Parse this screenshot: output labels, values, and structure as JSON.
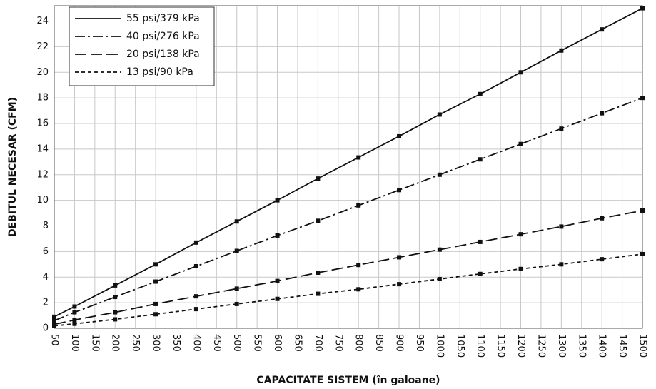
{
  "chart_data": {
    "type": "line",
    "x_label": "CAPACITATE SISTEM (în galoane)",
    "y_label": "DEBITUL NECESAR (CFM)",
    "x": [
      50,
      100,
      200,
      300,
      400,
      500,
      600,
      700,
      800,
      900,
      1000,
      1100,
      1200,
      1300,
      1400,
      1500
    ],
    "series": [
      {
        "name": "55 psi/379 kPa",
        "color": "#111111",
        "dash": "solid",
        "values": [
          0.9,
          1.7,
          3.35,
          5.0,
          6.7,
          8.35,
          10.0,
          11.7,
          13.35,
          15.0,
          16.7,
          18.3,
          20.0,
          21.7,
          23.35,
          25.0
        ]
      },
      {
        "name": "40 psi/276 kPa",
        "color": "#111111",
        "dash": "dashdot",
        "values": [
          0.6,
          1.25,
          2.45,
          3.65,
          4.85,
          6.05,
          7.25,
          8.4,
          9.6,
          10.8,
          12.0,
          13.2,
          14.4,
          15.6,
          16.8,
          18.0
        ]
      },
      {
        "name": "20 psi/138 kPa",
        "color": "#111111",
        "dash": "dash",
        "values": [
          0.31,
          0.65,
          1.25,
          1.9,
          2.5,
          3.1,
          3.7,
          4.35,
          4.95,
          5.55,
          6.15,
          6.75,
          7.35,
          7.95,
          8.6,
          9.2
        ]
      },
      {
        "name": "13 psi/90 kPa",
        "color": "#111111",
        "dash": "dot",
        "values": [
          0.19,
          0.35,
          0.7,
          1.1,
          1.5,
          1.9,
          2.3,
          2.7,
          3.05,
          3.45,
          3.85,
          4.25,
          4.64,
          5.0,
          5.4,
          5.8
        ]
      }
    ],
    "xlim": [
      50,
      1500
    ],
    "xticks": [
      50,
      100,
      150,
      200,
      250,
      300,
      350,
      400,
      450,
      500,
      550,
      600,
      650,
      700,
      750,
      800,
      850,
      900,
      950,
      1000,
      1050,
      1100,
      1150,
      1200,
      1250,
      1300,
      1350,
      1400,
      1450,
      1500
    ],
    "ylim": [
      0,
      25.2
    ],
    "yticks": [
      0,
      2,
      4,
      6,
      8,
      10,
      12,
      14,
      16,
      18,
      20,
      22,
      24
    ],
    "grid": true,
    "legend": "upper-left"
  }
}
